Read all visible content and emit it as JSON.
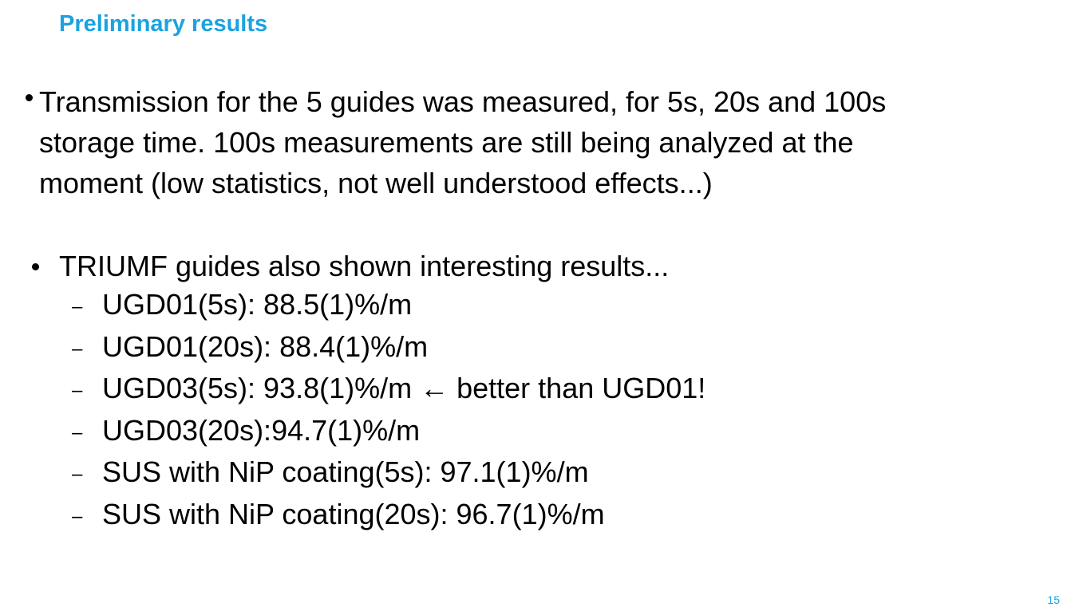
{
  "slide": {
    "title": "Preliminary results",
    "bullets": {
      "first": {
        "lines": [
          "Transmission for the 5 guides was measured, for 5s, 20s and 100s",
          "storage time. 100s measurements are still being analyzed at the",
          "moment (low statistics, not well understood effects...)"
        ]
      },
      "second": {
        "text": "TRIUMF guides also shown interesting results...",
        "sub_dash": "–",
        "sub_items": [
          "UGD01(5s): 88.5(1)%/m",
          "UGD01(20s): 88.4(1)%/m",
          "UGD03(5s): 93.8(1)%/m ← better than UGD01!",
          "UGD03(20s):94.7(1)%/m",
          "SUS with NiP coating(5s): 97.1(1)%/m",
          "SUS with NiP coating(20s): 96.7(1)%/m"
        ]
      }
    },
    "page_number": "15"
  },
  "colors": {
    "title": "#1aa3e0",
    "text": "#000000",
    "background": "#ffffff"
  }
}
